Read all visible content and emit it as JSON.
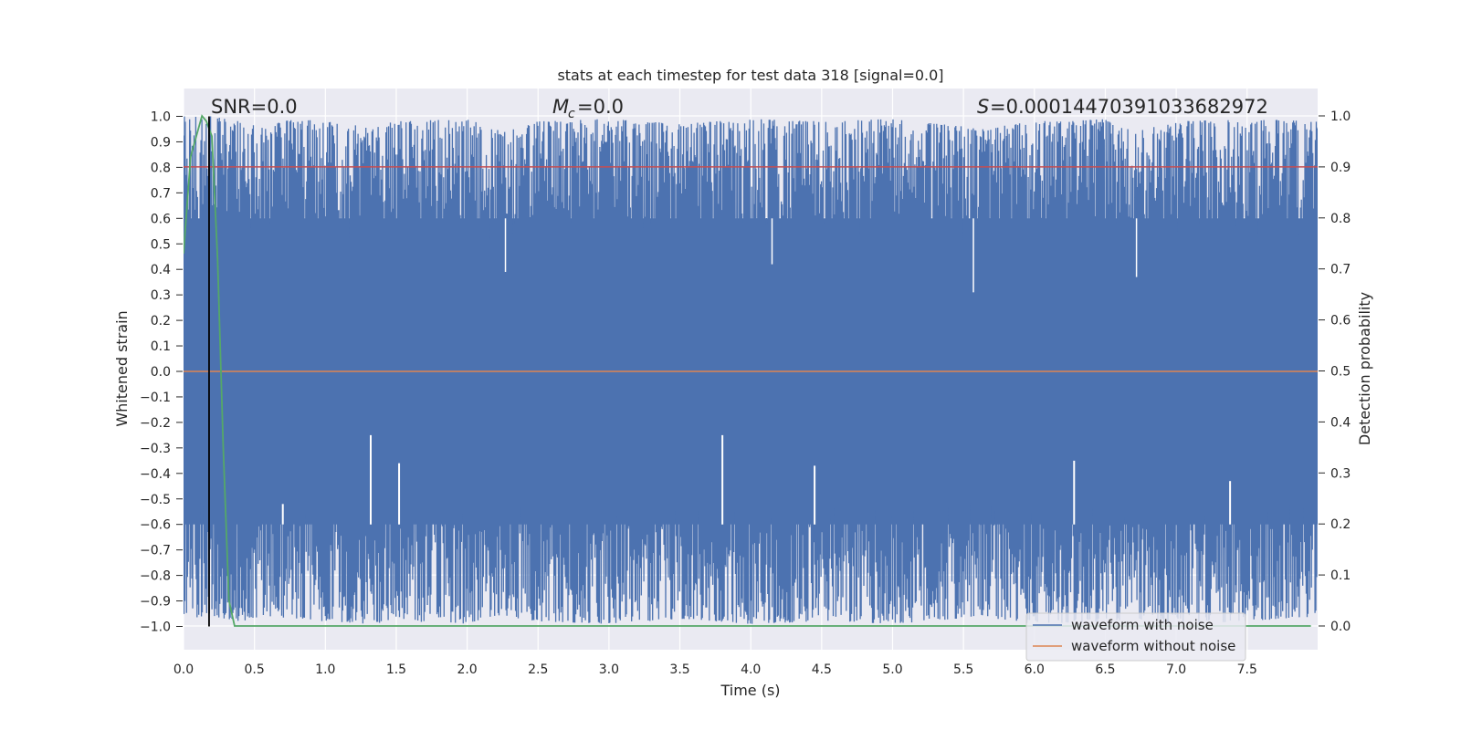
{
  "chart_data": {
    "type": "line",
    "title": "stats at each timestep for test data 318 [signal=0.0]",
    "xlabel": "Time (s)",
    "ylabel": "Whitened strain",
    "y2label": "Detection probability",
    "xlim": [
      0.0,
      8.0
    ],
    "ylim": [
      -1.1,
      1.1
    ],
    "y2lim": [
      -0.0364,
      1.0364
    ],
    "xticks": [
      0.0,
      0.5,
      1.0,
      1.5,
      2.0,
      2.5,
      3.0,
      3.5,
      4.0,
      4.5,
      5.0,
      5.5,
      6.0,
      6.5,
      7.0,
      7.5
    ],
    "xtick_labels": [
      "0.0",
      "0.5",
      "1.0",
      "1.5",
      "2.0",
      "2.5",
      "3.0",
      "3.5",
      "4.0",
      "4.5",
      "5.0",
      "5.5",
      "6.0",
      "6.5",
      "7.0",
      "7.5"
    ],
    "yticks": [
      1.0,
      0.9,
      0.8,
      0.7,
      0.6,
      0.5,
      0.4,
      0.3,
      0.2,
      0.1,
      0.0,
      -0.1,
      -0.2,
      -0.3,
      -0.4,
      -0.5,
      -0.6,
      -0.7,
      -0.8,
      -0.9,
      -1.0
    ],
    "ytick_labels": [
      "1.0",
      "0.9",
      "0.8",
      "0.7",
      "0.6",
      "0.5",
      "0.4",
      "0.3",
      "0.2",
      "0.1",
      "0.0",
      "−0.1",
      "−0.2",
      "−0.3",
      "−0.4",
      "−0.5",
      "−0.6",
      "−0.7",
      "−0.8",
      "−0.9",
      "−1.0"
    ],
    "y2ticks": [
      1.0,
      0.9,
      0.8,
      0.7,
      0.6,
      0.5,
      0.4,
      0.3,
      0.2,
      0.1,
      0.0
    ],
    "y2tick_labels": [
      "1.0",
      "0.9",
      "0.8",
      "0.7",
      "0.6",
      "0.5",
      "0.4",
      "0.3",
      "0.2",
      "0.1",
      "0.0"
    ],
    "grid": true,
    "legend_position": "lower-right",
    "series": [
      {
        "name": "waveform with noise",
        "color": "#4c72b0",
        "description_note": "dense noise oscillating between about -1.0 and 1.0",
        "envelope_x": [
          0.0,
          0.2,
          0.4,
          0.6,
          0.8,
          1.0,
          1.3,
          1.5,
          2.0,
          2.25,
          2.5,
          3.0,
          3.5,
          4.0,
          4.5,
          5.0,
          5.5,
          5.6,
          6.0,
          6.5,
          6.7,
          7.0,
          7.5,
          8.0
        ],
        "envelope_upper": [
          1.0,
          1.0,
          0.98,
          0.97,
          0.99,
          0.98,
          0.96,
          0.98,
          0.99,
          0.94,
          0.98,
          0.99,
          0.97,
          0.99,
          0.98,
          0.99,
          0.96,
          0.95,
          0.98,
          0.99,
          0.94,
          0.98,
          0.99,
          0.98
        ],
        "envelope_lower": [
          -0.97,
          -0.96,
          -0.98,
          -0.96,
          -0.97,
          -0.98,
          -0.99,
          -0.98,
          -0.99,
          -0.96,
          -0.98,
          -0.99,
          -0.97,
          -0.99,
          -0.98,
          -0.99,
          -0.97,
          -0.96,
          -0.99,
          -0.98,
          -0.97,
          -0.99,
          -0.98,
          -0.96
        ],
        "spikes_up_x": [
          0.7,
          1.32,
          1.52,
          3.8,
          4.45,
          6.28,
          7.38
        ],
        "spikes_up_y": [
          -0.52,
          -0.25,
          -0.36,
          -0.25,
          -0.37,
          -0.35,
          -0.43
        ],
        "spikes_down_x": [
          2.27,
          4.15,
          5.57,
          6.72
        ],
        "spikes_down_y": [
          0.39,
          0.42,
          0.31,
          0.37
        ]
      },
      {
        "name": "waveform without noise",
        "color": "#dd8452",
        "x": [
          0.0,
          8.0
        ],
        "y": [
          0.0,
          0.0
        ]
      },
      {
        "name": "",
        "color": "#c44e52",
        "axis": "right",
        "x": [
          0.0,
          8.0
        ],
        "y": [
          0.9,
          0.9
        ]
      },
      {
        "name": "",
        "color": "#55a868",
        "axis": "right",
        "x": [
          0.0,
          0.05,
          0.1,
          0.13,
          0.16,
          0.2,
          0.24,
          0.28,
          0.32,
          0.36,
          0.4,
          1.0,
          2.0,
          3.0,
          4.0,
          5.0,
          6.0,
          7.0,
          7.95
        ],
        "y": [
          0.73,
          0.92,
          0.97,
          1.0,
          0.99,
          0.96,
          0.72,
          0.35,
          0.05,
          0.0,
          0.0,
          0.0,
          0.0,
          0.0,
          0.0,
          0.0,
          0.0,
          0.0,
          0.0
        ]
      }
    ],
    "vline": {
      "x": 0.18,
      "color": "#000000"
    },
    "annotations": [
      {
        "key": "snr",
        "text": "SNR=0.0"
      },
      {
        "key": "mc",
        "text": "=0.0",
        "symbol": "M",
        "subscript": "c"
      },
      {
        "key": "s",
        "text": "=0.0001447039103368​2972",
        "symbol": "S"
      }
    ]
  }
}
